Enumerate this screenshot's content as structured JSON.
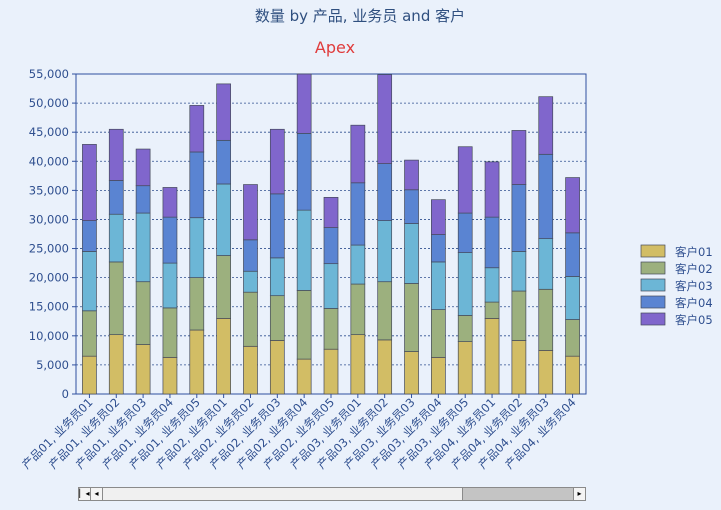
{
  "chart_data": {
    "type": "bar",
    "stacked": true,
    "title": "数量 by 产品, 业务员 and 客户",
    "subtitle": "Apex",
    "xlabel": "",
    "ylabel": "",
    "ylim": [
      0,
      55000
    ],
    "yticks": [
      "0",
      "5,000",
      "10,000",
      "15,000",
      "20,000",
      "25,000",
      "30,000",
      "35,000",
      "40,000",
      "45,000",
      "50,000",
      "55,000"
    ],
    "grid": true,
    "legend_position": "right",
    "categories": [
      "产品01, 业务员01",
      "产品01, 业务员02",
      "产品01, 业务员03",
      "产品01, 业务员04",
      "产品01, 业务员05",
      "产品02, 业务员01",
      "产品02, 业务员02",
      "产品02, 业务员03",
      "产品02, 业务员04",
      "产品02, 业务员05",
      "产品03, 业务员01",
      "产品03, 业务员02",
      "产品03, 业务员03",
      "产品03, 业务员04",
      "产品03, 业务员05",
      "产品04, 业务员01",
      "产品04, 业务员02",
      "产品04, 业务员03",
      "产品04, 业务员04"
    ],
    "series": [
      {
        "name": "客户01",
        "color": "#d2bd65",
        "values": [
          6500,
          10200,
          8500,
          6300,
          11000,
          13000,
          8200,
          9200,
          6000,
          7700,
          10200,
          9300,
          7300,
          6300,
          9000,
          13000,
          9200,
          7500,
          6500
        ]
      },
      {
        "name": "客户02",
        "color": "#9cb07e",
        "values": [
          7800,
          12500,
          10800,
          8500,
          9000,
          10800,
          9300,
          7700,
          11800,
          7000,
          8700,
          10000,
          11700,
          8200,
          4500,
          2800,
          8500,
          10500,
          6300
        ]
      },
      {
        "name": "客户03",
        "color": "#6cb6d6",
        "values": [
          10200,
          8200,
          11800,
          7700,
          10300,
          12300,
          3600,
          6500,
          13800,
          7700,
          6700,
          10500,
          10300,
          8200,
          10800,
          5900,
          6800,
          8700,
          7400
        ]
      },
      {
        "name": "客户04",
        "color": "#5a84d2",
        "values": [
          5300,
          5800,
          4700,
          7900,
          11300,
          7500,
          5400,
          11000,
          13200,
          6200,
          10700,
          9800,
          5800,
          4700,
          6800,
          8700,
          11500,
          14500,
          7500
        ]
      },
      {
        "name": "客户05",
        "color": "#8066cc",
        "values": [
          13100,
          8800,
          6300,
          5100,
          8000,
          9700,
          9500,
          11100,
          10200,
          5200,
          9900,
          15300,
          5100,
          6000,
          11400,
          9500,
          9300,
          9900,
          9500
        ]
      }
    ]
  }
}
